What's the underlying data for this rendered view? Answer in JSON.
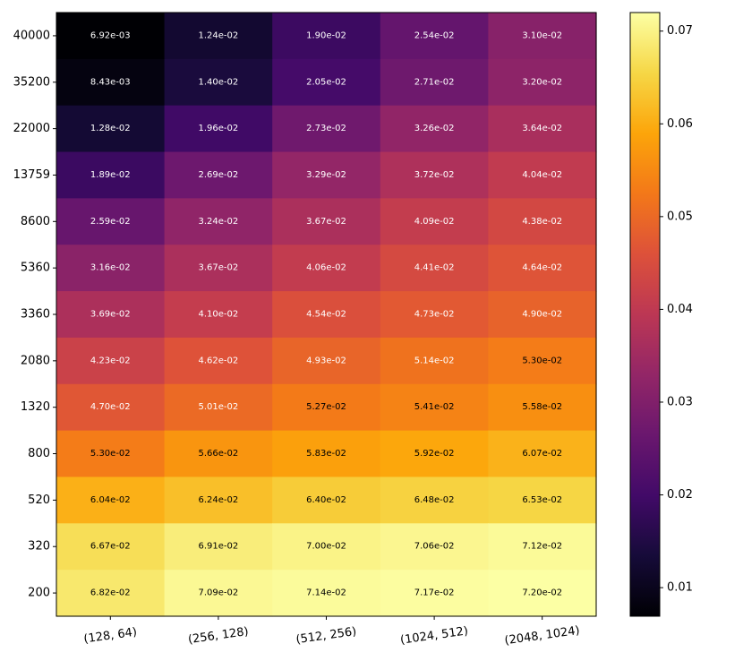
{
  "chart_data": {
    "type": "heatmap",
    "title": "",
    "xlabel": "",
    "ylabel": "",
    "x_categories": [
      "(128, 64)",
      "(256, 128)",
      "(512, 256)",
      "(1024, 512)",
      "(2048, 1024)"
    ],
    "y_categories": [
      "40000",
      "35200",
      "22000",
      "13759",
      "8600",
      "5360",
      "3360",
      "2080",
      "1320",
      "800",
      "520",
      "320",
      "200"
    ],
    "values": [
      [
        0.00692,
        0.0124,
        0.019,
        0.0254,
        0.031
      ],
      [
        0.00843,
        0.014,
        0.0205,
        0.0271,
        0.032
      ],
      [
        0.0128,
        0.0196,
        0.0273,
        0.0326,
        0.0364
      ],
      [
        0.0189,
        0.0269,
        0.0329,
        0.0372,
        0.0404
      ],
      [
        0.0259,
        0.0324,
        0.0367,
        0.0409,
        0.0438
      ],
      [
        0.0316,
        0.0367,
        0.0406,
        0.0441,
        0.0464
      ],
      [
        0.0369,
        0.041,
        0.0454,
        0.0473,
        0.049
      ],
      [
        0.0423,
        0.0462,
        0.0493,
        0.0514,
        0.053
      ],
      [
        0.047,
        0.0501,
        0.0527,
        0.0541,
        0.0558
      ],
      [
        0.053,
        0.0566,
        0.0583,
        0.0592,
        0.0607
      ],
      [
        0.0604,
        0.0624,
        0.064,
        0.0648,
        0.0653
      ],
      [
        0.0667,
        0.0691,
        0.07,
        0.0706,
        0.0712
      ],
      [
        0.0682,
        0.0709,
        0.0714,
        0.0717,
        0.072
      ]
    ],
    "labels": [
      [
        "6.92e-03",
        "1.24e-02",
        "1.90e-02",
        "2.54e-02",
        "3.10e-02"
      ],
      [
        "8.43e-03",
        "1.40e-02",
        "2.05e-02",
        "2.71e-02",
        "3.20e-02"
      ],
      [
        "1.28e-02",
        "1.96e-02",
        "2.73e-02",
        "3.26e-02",
        "3.64e-02"
      ],
      [
        "1.89e-02",
        "2.69e-02",
        "3.29e-02",
        "3.72e-02",
        "4.04e-02"
      ],
      [
        "2.59e-02",
        "3.24e-02",
        "3.67e-02",
        "4.09e-02",
        "4.38e-02"
      ],
      [
        "3.16e-02",
        "3.67e-02",
        "4.06e-02",
        "4.41e-02",
        "4.64e-02"
      ],
      [
        "3.69e-02",
        "4.10e-02",
        "4.54e-02",
        "4.73e-02",
        "4.90e-02"
      ],
      [
        "4.23e-02",
        "4.62e-02",
        "4.93e-02",
        "5.14e-02",
        "5.30e-02"
      ],
      [
        "4.70e-02",
        "5.01e-02",
        "5.27e-02",
        "5.41e-02",
        "5.58e-02"
      ],
      [
        "5.30e-02",
        "5.66e-02",
        "5.83e-02",
        "5.92e-02",
        "6.07e-02"
      ],
      [
        "6.04e-02",
        "6.24e-02",
        "6.40e-02",
        "6.48e-02",
        "6.53e-02"
      ],
      [
        "6.67e-02",
        "6.91e-02",
        "7.00e-02",
        "7.06e-02",
        "7.12e-02"
      ],
      [
        "6.82e-02",
        "7.09e-02",
        "7.14e-02",
        "7.17e-02",
        "7.20e-02"
      ]
    ],
    "colormap": "inferno",
    "color_range": [
      0.00692,
      0.072
    ],
    "colorbar_ticks": [
      0.01,
      0.02,
      0.03,
      0.04,
      0.05,
      0.06,
      0.07
    ],
    "colorbar_tick_labels": [
      "0.01",
      "0.02",
      "0.03",
      "0.04",
      "0.05",
      "0.06",
      "0.07"
    ],
    "label_color_light": "#ffffff",
    "label_color_dark": "#000000",
    "label_dark_threshold": 0.052
  }
}
